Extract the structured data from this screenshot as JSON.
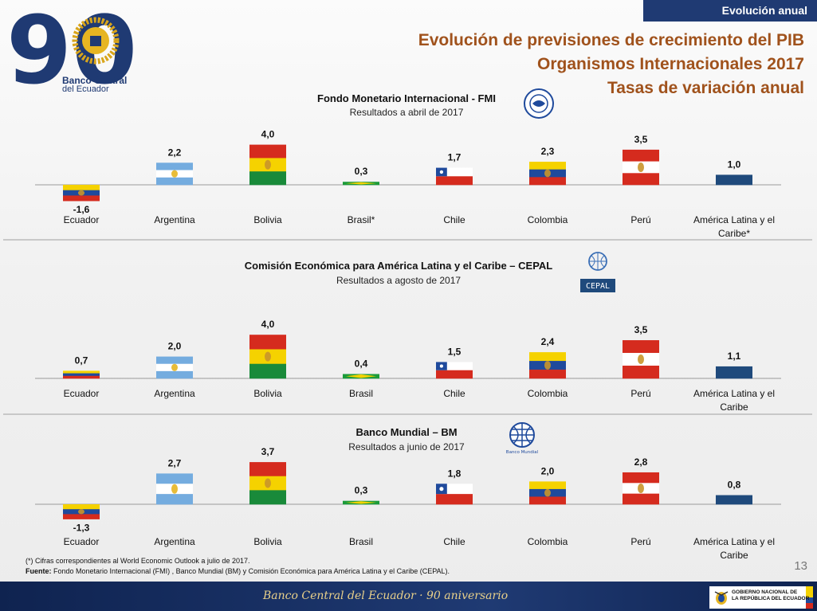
{
  "header": {
    "tag": "Evolución anual",
    "title_lines": [
      "Evolución de previsiones de crecimiento del PIB",
      "Organismos Internacionales 2017",
      "Tasas de variación anual"
    ],
    "logo_number": "90",
    "logo_line1": "Banco Central",
    "logo_line2": "del Ecuador"
  },
  "flag_colors": {
    "Ecuador": [
      "#f5d200",
      "#1f4a9c",
      "#d52b1e"
    ],
    "Argentina": [
      "#74acdf",
      "#ffffff",
      "#74acdf"
    ],
    "Bolivia": [
      "#d52b1e",
      "#f5d200",
      "#198a3a"
    ],
    "Brasil": [
      "#1b9b3a"
    ],
    "Chile": [
      "#ffffff",
      "#d52b1e"
    ],
    "Colombia": [
      "#f5d200",
      "#1f4a9c",
      "#d52b1e"
    ],
    "Perú": [
      "#d52b1e",
      "#ffffff",
      "#d52b1e"
    ],
    "América Latina y el Caribe": [
      "#1f4a7c"
    ]
  },
  "chart_data": [
    {
      "type": "bar",
      "title": "Fondo Monetario Internacional  - FMI",
      "subtitle": "Resultados a abril de 2017",
      "org_logo": "imf-seal-icon",
      "categories": [
        "Ecuador",
        "Argentina",
        "Bolivia",
        "Brasil*",
        "Chile",
        "Colombia",
        "Perú",
        "América Latina y el Caribe*"
      ],
      "values": [
        -1.6,
        2.2,
        4.0,
        0.3,
        1.7,
        2.3,
        3.5,
        1.0
      ],
      "value_labels": [
        "-1,6",
        "2,2",
        "4,0",
        "0,3",
        "1,7",
        "2,3",
        "3,5",
        "1,0"
      ]
    },
    {
      "type": "bar",
      "title": "Comisión Económica para América Latina y el Caribe – CEPAL",
      "subtitle": "Resultados a agosto de 2017",
      "org_logo": "un-cepal-icon",
      "org_logo_text": "CEPAL",
      "categories": [
        "Ecuador",
        "Argentina",
        "Bolivia",
        "Brasil",
        "Chile",
        "Colombia",
        "Perú",
        "América Latina y el Caribe"
      ],
      "values": [
        0.7,
        2.0,
        4.0,
        0.4,
        1.5,
        2.4,
        3.5,
        1.1
      ],
      "value_labels": [
        "0,7",
        "2,0",
        "4,0",
        "0,4",
        "1,5",
        "2,4",
        "3,5",
        "1,1"
      ]
    },
    {
      "type": "bar",
      "title": "Banco Mundial – BM",
      "subtitle": "Resultados a junio de 2017",
      "org_logo": "world-bank-globe-icon",
      "org_logo_text": "Banco Mundial",
      "categories": [
        "Ecuador",
        "Argentina",
        "Bolivia",
        "Brasil",
        "Chile",
        "Colombia",
        "Perú",
        "América Latina y el Caribe"
      ],
      "values": [
        -1.3,
        2.7,
        3.7,
        0.3,
        1.8,
        2.0,
        2.8,
        0.8
      ],
      "value_labels": [
        "-1,3",
        "2,7",
        "3,7",
        "0,3",
        "1,8",
        "2,0",
        "2,8",
        "0,8"
      ]
    }
  ],
  "footnote": {
    "note1": "(*)  Cifras correspondientes al World Economic Outlook a julio de 2017.",
    "source_label": "Fuente:",
    "source_text": " Fondo Monetario Internacional (FMI) , Banco Mundial (BM)  y Comisión Económica para América Latina y el Caribe (CEPAL)."
  },
  "page_number": "13",
  "footer": {
    "tagline": "Banco Central del Ecuador · 90 aniversario",
    "gov_line1": "GOBIERNO NACIONAL DE",
    "gov_line2": "LA REPÚBLICA DEL ECUADOR"
  }
}
